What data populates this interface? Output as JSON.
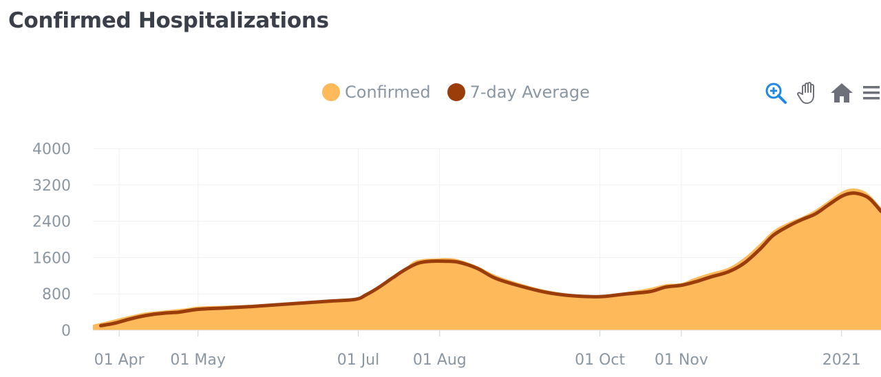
{
  "page": {
    "title": "Confirmed Hospitalizations"
  },
  "legend": [
    {
      "label": "Confirmed",
      "color": "#FEB95A"
    },
    {
      "label": "7-day Average",
      "color": "#9A3D0A"
    }
  ],
  "toolbar": {
    "icons": [
      "zoom-in-icon",
      "pan-hand-icon",
      "home-icon",
      "menu-icon"
    ]
  },
  "chart_data": {
    "type": "area",
    "title": "Confirmed Hospitalizations",
    "xlabel": "",
    "ylabel": "",
    "ylim": [
      0,
      4000
    ],
    "xlim": [
      "2020-03-22",
      "2021-01-16"
    ],
    "grid": true,
    "legend_position": "top-center",
    "y_ticks": [
      "0",
      "800",
      "1600",
      "2400",
      "3200",
      "4000"
    ],
    "x_ticks": [
      {
        "label": "01 Apr",
        "date": "2020-04-01"
      },
      {
        "label": "01 May",
        "date": "2020-05-01"
      },
      {
        "label": "01 Jul",
        "date": "2020-07-01"
      },
      {
        "label": "01 Aug",
        "date": "2020-08-01"
      },
      {
        "label": "01 Oct",
        "date": "2020-10-01"
      },
      {
        "label": "01 Nov",
        "date": "2020-11-01"
      },
      {
        "label": "2021",
        "date": "2021-01-01"
      }
    ],
    "series": [
      {
        "name": "Confirmed",
        "type": "area",
        "color": "#FEB95A",
        "x": [
          "2020-03-22",
          "2020-03-27",
          "2020-04-01",
          "2020-04-06",
          "2020-04-11",
          "2020-04-16",
          "2020-04-21",
          "2020-04-26",
          "2020-05-01",
          "2020-05-11",
          "2020-05-21",
          "2020-05-31",
          "2020-06-10",
          "2020-06-20",
          "2020-06-30",
          "2020-07-03",
          "2020-07-08",
          "2020-07-13",
          "2020-07-18",
          "2020-07-22",
          "2020-07-26",
          "2020-07-30",
          "2020-08-04",
          "2020-08-08",
          "2020-08-15",
          "2020-08-22",
          "2020-08-30",
          "2020-09-10",
          "2020-09-20",
          "2020-10-01",
          "2020-10-11",
          "2020-10-20",
          "2020-10-26",
          "2020-11-01",
          "2020-11-06",
          "2020-11-12",
          "2020-11-19",
          "2020-11-25",
          "2020-12-01",
          "2020-12-06",
          "2020-12-12",
          "2020-12-17",
          "2020-12-22",
          "2020-12-27",
          "2021-01-01",
          "2021-01-05",
          "2021-01-09",
          "2021-01-12",
          "2021-01-16"
        ],
        "values": [
          120,
          190,
          260,
          330,
          390,
          420,
          450,
          480,
          520,
          540,
          560,
          590,
          620,
          660,
          700,
          760,
          950,
          1150,
          1320,
          1510,
          1570,
          1580,
          1590,
          1560,
          1420,
          1220,
          1060,
          890,
          800,
          770,
          840,
          930,
          1010,
          1040,
          1150,
          1260,
          1380,
          1600,
          1910,
          2190,
          2380,
          2500,
          2650,
          2850,
          3050,
          3120,
          3080,
          2960,
          2700
        ]
      },
      {
        "name": "7-day Average",
        "type": "line",
        "color": "#9A3D0A",
        "x": [
          "2020-03-25",
          "2020-03-30",
          "2020-04-04",
          "2020-04-09",
          "2020-04-14",
          "2020-04-19",
          "2020-04-24",
          "2020-05-01",
          "2020-05-11",
          "2020-05-21",
          "2020-05-31",
          "2020-06-10",
          "2020-06-20",
          "2020-06-30",
          "2020-07-04",
          "2020-07-09",
          "2020-07-14",
          "2020-07-19",
          "2020-07-24",
          "2020-07-29",
          "2020-08-03",
          "2020-08-08",
          "2020-08-15",
          "2020-08-22",
          "2020-08-30",
          "2020-09-10",
          "2020-09-20",
          "2020-10-01",
          "2020-10-11",
          "2020-10-20",
          "2020-10-26",
          "2020-11-01",
          "2020-11-06",
          "2020-11-12",
          "2020-11-19",
          "2020-11-25",
          "2020-12-01",
          "2020-12-06",
          "2020-12-12",
          "2020-12-17",
          "2020-12-22",
          "2020-12-27",
          "2021-01-01",
          "2021-01-05",
          "2021-01-09",
          "2021-01-12",
          "2021-01-16"
        ],
        "values": [
          100,
          150,
          230,
          300,
          350,
          380,
          400,
          460,
          490,
          520,
          560,
          600,
          640,
          680,
          780,
          950,
          1150,
          1340,
          1480,
          1520,
          1520,
          1500,
          1370,
          1150,
          1000,
          840,
          760,
          740,
          800,
          850,
          950,
          990,
          1060,
          1170,
          1290,
          1480,
          1790,
          2090,
          2300,
          2440,
          2560,
          2760,
          2950,
          3020,
          2980,
          2880,
          2620
        ]
      }
    ]
  }
}
